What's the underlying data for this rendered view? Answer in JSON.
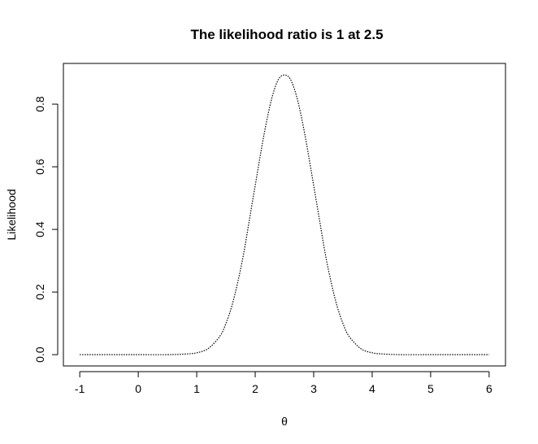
{
  "chart_data": {
    "type": "line",
    "title": "The likelihood ratio is 1 at 2.5",
    "xlabel": "θ",
    "ylabel": "Likelihood",
    "xlim": [
      -1.28,
      6.28
    ],
    "ylim": [
      -0.036,
      0.93
    ],
    "x_ticks": [
      -1,
      0,
      1,
      2,
      3,
      4,
      5,
      6
    ],
    "x_tick_labels": [
      "-1",
      "0",
      "1",
      "2",
      "3",
      "4",
      "5",
      "6"
    ],
    "y_ticks": [
      0.0,
      0.2,
      0.4,
      0.6,
      0.8
    ],
    "y_tick_labels": [
      "0.0",
      "0.2",
      "0.4",
      "0.6",
      "0.8"
    ],
    "grid": false,
    "legend": "none",
    "line_style": "dotted",
    "series": [
      {
        "x": [
          -1.0,
          -0.5,
          0.0,
          0.5,
          0.8,
          1.0,
          1.2,
          1.4,
          1.5,
          1.6,
          1.7,
          1.8,
          1.9,
          2.0,
          2.1,
          2.2,
          2.3,
          2.4,
          2.5,
          2.6,
          2.7,
          2.8,
          2.9,
          3.0,
          3.1,
          3.2,
          3.3,
          3.4,
          3.5,
          3.6,
          3.8,
          4.0,
          4.2,
          4.5,
          5.0,
          5.5,
          6.0
        ],
        "y": [
          0.0,
          0.0,
          0.0,
          0.0,
          0.002,
          0.006,
          0.02,
          0.06,
          0.1,
          0.155,
          0.23,
          0.32,
          0.43,
          0.54,
          0.65,
          0.75,
          0.83,
          0.88,
          0.893,
          0.88,
          0.83,
          0.75,
          0.65,
          0.54,
          0.43,
          0.32,
          0.23,
          0.155,
          0.1,
          0.06,
          0.02,
          0.006,
          0.002,
          0.0,
          0.0,
          0.0,
          0.0
        ]
      }
    ]
  }
}
